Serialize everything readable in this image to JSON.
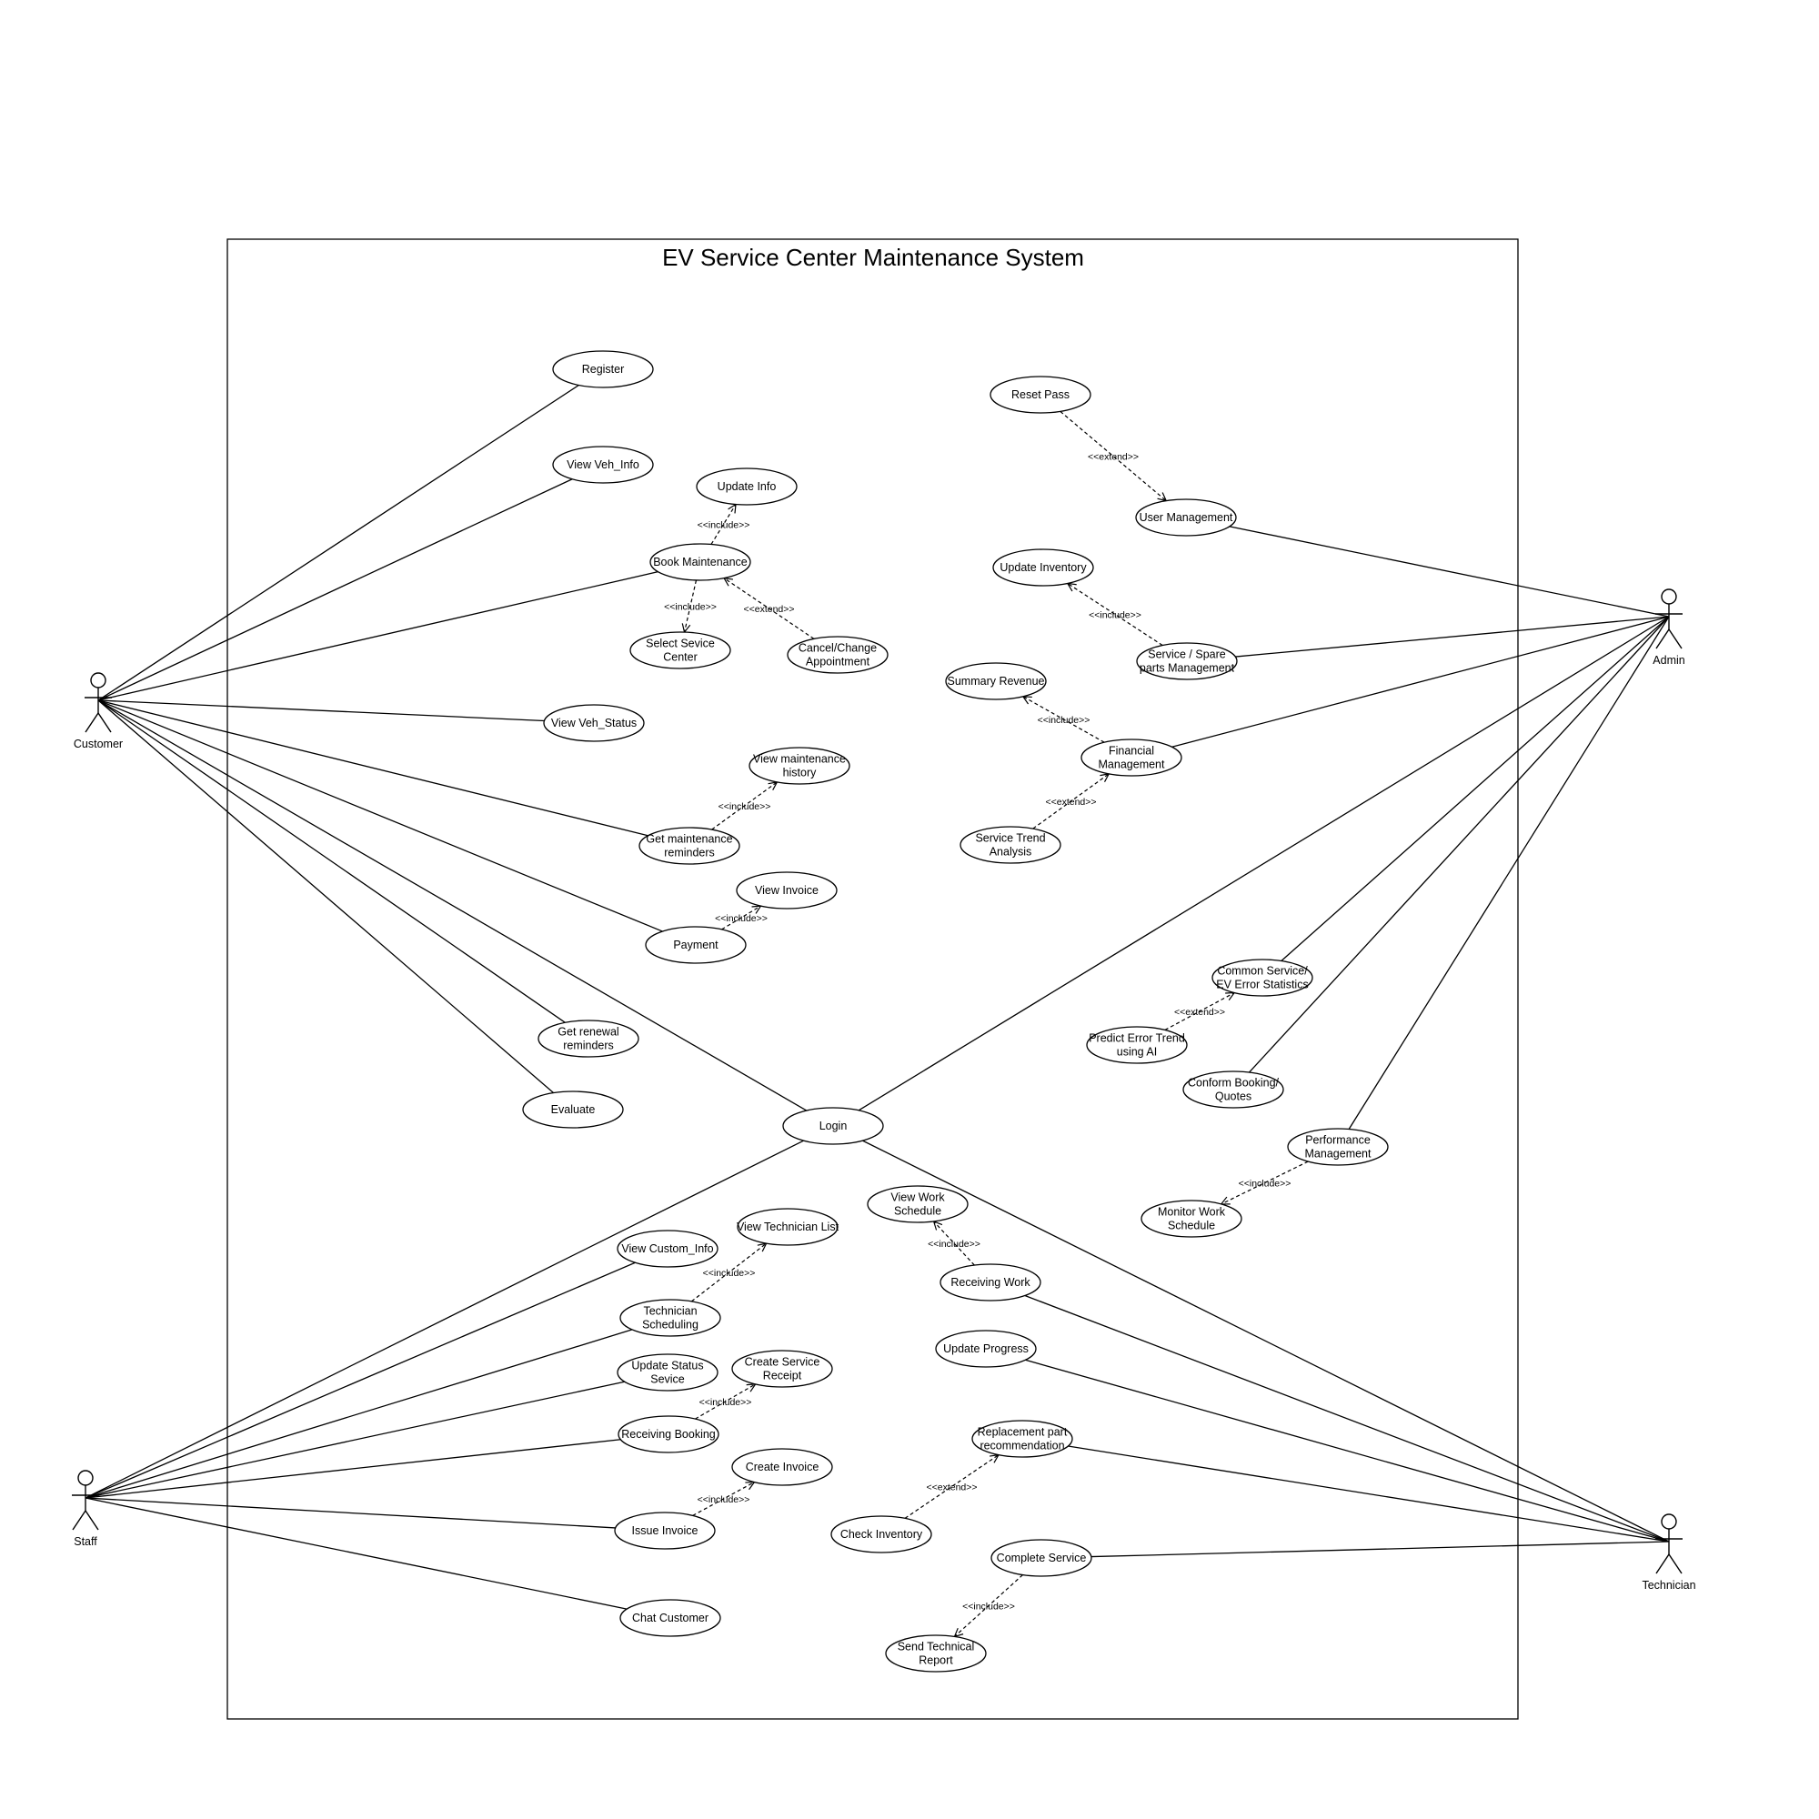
{
  "system": {
    "title": "EV Service Center Maintenance System"
  },
  "actors": {
    "customer": "Customer",
    "admin": "Admin",
    "staff": "Staff",
    "technician": "Technician"
  },
  "use_cases": {
    "register": [
      "Register"
    ],
    "view_veh_info": [
      "View Veh_Info"
    ],
    "update_info": [
      "Update Info"
    ],
    "book_maintenance": [
      "Book Maintenance"
    ],
    "select_service_center": [
      "Select Sevice",
      "Center"
    ],
    "cancel_change_appointment": [
      "Cancel/Change",
      "Appointment"
    ],
    "view_veh_status": [
      "View Veh_Status"
    ],
    "view_maintenance_history": [
      "View maintenance",
      "history"
    ],
    "get_maintenance_reminders": [
      "Get maintenance",
      "reminders"
    ],
    "view_invoice": [
      "View Invoice"
    ],
    "payment": [
      "Payment"
    ],
    "get_renewal_reminders": [
      "Get renewal",
      "reminders"
    ],
    "evaluate": [
      "Evaluate"
    ],
    "login": [
      "Login"
    ],
    "reset_pass": [
      "Reset Pass"
    ],
    "user_management": [
      "User Management"
    ],
    "update_inventory": [
      "Update Inventory"
    ],
    "service_spare_parts_management": [
      "Service / Spare",
      "parts Management"
    ],
    "summary_revenue": [
      "Summary Revenue"
    ],
    "financial_management": [
      "Financial",
      "Management"
    ],
    "service_trend_analysis": [
      "Service Trend",
      "Analysis"
    ],
    "common_service_statistics": [
      "Common Service/",
      "EV Error Statistics"
    ],
    "predict_error_trend": [
      "Predict Error Trend",
      "using AI"
    ],
    "conform_booking_quotes": [
      "Conform Booking/",
      "Quotes"
    ],
    "performance_management": [
      "Performance",
      "Management"
    ],
    "monitor_work_schedule": [
      "Monitor Work",
      "Schedule"
    ],
    "view_work_schedule": [
      "View Work",
      "Schedule"
    ],
    "receiving_work": [
      "Receiving Work"
    ],
    "update_progress": [
      "Update Progress"
    ],
    "replacement_part_recommendation": [
      "Replacement part",
      "recommendation"
    ],
    "check_inventory": [
      "Check Inventory"
    ],
    "complete_service": [
      "Complete Service"
    ],
    "send_technical_report": [
      "Send Technical",
      "Report"
    ],
    "view_custom_info": [
      "View Custom_Info"
    ],
    "view_technician_list": [
      "View Technician List"
    ],
    "technician_scheduling": [
      "Technician",
      "Scheduling"
    ],
    "update_status_service": [
      "Update Status",
      "Sevice"
    ],
    "create_service_receipt": [
      "Create Service",
      "Receipt"
    ],
    "receiving_booking": [
      "Receiving Booking"
    ],
    "create_invoice": [
      "Create Invoice"
    ],
    "issue_invoice": [
      "Issue Invoice"
    ],
    "chat_customer": [
      "Chat Customer"
    ]
  },
  "associations": [
    [
      "customer",
      "register"
    ],
    [
      "customer",
      "view_veh_info"
    ],
    [
      "customer",
      "book_maintenance"
    ],
    [
      "customer",
      "view_veh_status"
    ],
    [
      "customer",
      "get_maintenance_reminders"
    ],
    [
      "customer",
      "payment"
    ],
    [
      "customer",
      "get_renewal_reminders"
    ],
    [
      "customer",
      "evaluate"
    ],
    [
      "customer",
      "login"
    ],
    [
      "admin",
      "user_management"
    ],
    [
      "admin",
      "service_spare_parts_management"
    ],
    [
      "admin",
      "financial_management"
    ],
    [
      "admin",
      "login"
    ],
    [
      "admin",
      "common_service_statistics"
    ],
    [
      "admin",
      "conform_booking_quotes"
    ],
    [
      "admin",
      "performance_management"
    ],
    [
      "staff",
      "login"
    ],
    [
      "staff",
      "view_custom_info"
    ],
    [
      "staff",
      "technician_scheduling"
    ],
    [
      "staff",
      "update_status_service"
    ],
    [
      "staff",
      "receiving_booking"
    ],
    [
      "staff",
      "issue_invoice"
    ],
    [
      "staff",
      "chat_customer"
    ],
    [
      "technician",
      "login"
    ],
    [
      "technician",
      "receiving_work"
    ],
    [
      "technician",
      "update_progress"
    ],
    [
      "technician",
      "replacement_part_recommendation"
    ],
    [
      "technician",
      "complete_service"
    ]
  ],
  "dependencies": [
    {
      "from": "book_maintenance",
      "to": "update_info",
      "label": "<<include>>"
    },
    {
      "from": "book_maintenance",
      "to": "select_service_center",
      "label": "<<include>>"
    },
    {
      "from": "cancel_change_appointment",
      "to": "book_maintenance",
      "label": "<<extend>>"
    },
    {
      "from": "get_maintenance_reminders",
      "to": "view_maintenance_history",
      "label": "<<include>>"
    },
    {
      "from": "payment",
      "to": "view_invoice",
      "label": "<<include>>"
    },
    {
      "from": "reset_pass",
      "to": "user_management",
      "label": "<<extend>>"
    },
    {
      "from": "service_spare_parts_management",
      "to": "update_inventory",
      "label": "<<include>>"
    },
    {
      "from": "financial_management",
      "to": "summary_revenue",
      "label": "<<include>>"
    },
    {
      "from": "service_trend_analysis",
      "to": "financial_management",
      "label": "<<extend>>"
    },
    {
      "from": "predict_error_trend",
      "to": "common_service_statistics",
      "label": "<<extend>>"
    },
    {
      "from": "performance_management",
      "to": "monitor_work_schedule",
      "label": "<<include>>"
    },
    {
      "from": "receiving_work",
      "to": "view_work_schedule",
      "label": "<<include>>"
    },
    {
      "from": "check_inventory",
      "to": "replacement_part_recommendation",
      "label": "<<extend>>"
    },
    {
      "from": "complete_service",
      "to": "send_technical_report",
      "label": "<<include>>"
    },
    {
      "from": "technician_scheduling",
      "to": "view_technician_list",
      "label": "<<include>>"
    },
    {
      "from": "receiving_booking",
      "to": "create_service_receipt",
      "label": "<<include>>"
    },
    {
      "from": "issue_invoice",
      "to": "create_invoice",
      "label": "<<include>>"
    }
  ]
}
